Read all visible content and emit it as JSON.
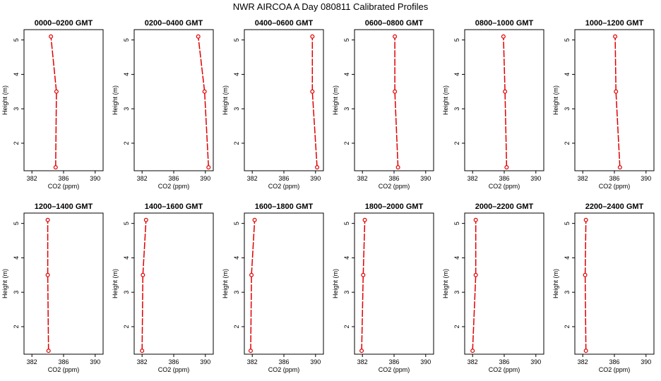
{
  "page_title": "NWR AIRCOA A  Day 080811  Calibrated Profiles",
  "colors": {
    "series": "#dd0000",
    "axes": "#000000",
    "background": "#ffffff"
  },
  "chart_data": [
    {
      "type": "line",
      "title": "0000–0200 GMT",
      "xlabel": "CO2 (ppm)",
      "ylabel": "Height (m)",
      "xlim": [
        381,
        391
      ],
      "ylim": [
        1.2,
        5.3
      ],
      "xticks": [
        "382",
        "386",
        "390"
      ],
      "yticks": [
        "2",
        "3",
        "4",
        "5"
      ],
      "points": [
        {
          "co2": 385.0,
          "height": 1.3
        },
        {
          "co2": 385.1,
          "height": 3.5
        },
        {
          "co2": 384.4,
          "height": 5.1
        }
      ]
    },
    {
      "type": "line",
      "title": "0200–0400 GMT",
      "xlabel": "CO2 (ppm)",
      "ylabel": "Height (m)",
      "xlim": [
        381,
        391
      ],
      "ylim": [
        1.2,
        5.3
      ],
      "xticks": [
        "382",
        "386",
        "390"
      ],
      "yticks": [
        "2",
        "3",
        "4",
        "5"
      ],
      "points": [
        {
          "co2": 390.4,
          "height": 1.3
        },
        {
          "co2": 389.9,
          "height": 3.5
        },
        {
          "co2": 389.1,
          "height": 5.1
        }
      ]
    },
    {
      "type": "line",
      "title": "0400–0600 GMT",
      "xlabel": "CO2 (ppm)",
      "ylabel": "Height (m)",
      "xlim": [
        381,
        391
      ],
      "ylim": [
        1.2,
        5.3
      ],
      "xticks": [
        "382",
        "386",
        "390"
      ],
      "yticks": [
        "2",
        "3",
        "4",
        "5"
      ],
      "points": [
        {
          "co2": 390.2,
          "height": 1.3
        },
        {
          "co2": 389.6,
          "height": 3.5
        },
        {
          "co2": 389.6,
          "height": 5.1
        }
      ]
    },
    {
      "type": "line",
      "title": "0600–0800 GMT",
      "xlabel": "CO2 (ppm)",
      "ylabel": "Height (m)",
      "xlim": [
        381,
        391
      ],
      "ylim": [
        1.2,
        5.3
      ],
      "xticks": [
        "382",
        "386",
        "390"
      ],
      "yticks": [
        "2",
        "3",
        "4",
        "5"
      ],
      "points": [
        {
          "co2": 386.5,
          "height": 1.3
        },
        {
          "co2": 386.1,
          "height": 3.5
        },
        {
          "co2": 386.1,
          "height": 5.1
        }
      ]
    },
    {
      "type": "line",
      "title": "0800–1000 GMT",
      "xlabel": "CO2 (ppm)",
      "ylabel": "Height (m)",
      "xlim": [
        381,
        391
      ],
      "ylim": [
        1.2,
        5.3
      ],
      "xticks": [
        "382",
        "386",
        "390"
      ],
      "yticks": [
        "2",
        "3",
        "4",
        "5"
      ],
      "points": [
        {
          "co2": 386.3,
          "height": 1.3
        },
        {
          "co2": 386.1,
          "height": 3.5
        },
        {
          "co2": 385.9,
          "height": 5.1
        }
      ]
    },
    {
      "type": "line",
      "title": "1000–1200 GMT",
      "xlabel": "CO2 (ppm)",
      "ylabel": "Height (m)",
      "xlim": [
        381,
        391
      ],
      "ylim": [
        1.2,
        5.3
      ],
      "xticks": [
        "382",
        "386",
        "390"
      ],
      "yticks": [
        "2",
        "3",
        "4",
        "5"
      ],
      "points": [
        {
          "co2": 386.7,
          "height": 1.3
        },
        {
          "co2": 386.2,
          "height": 3.5
        },
        {
          "co2": 386.1,
          "height": 5.1
        }
      ]
    },
    {
      "type": "line",
      "title": "1200–1400 GMT",
      "xlabel": "CO2 (ppm)",
      "ylabel": "Height (m)",
      "xlim": [
        381,
        391
      ],
      "ylim": [
        1.2,
        5.3
      ],
      "xticks": [
        "382",
        "386",
        "390"
      ],
      "yticks": [
        "2",
        "3",
        "4",
        "5"
      ],
      "points": [
        {
          "co2": 384.1,
          "height": 1.3
        },
        {
          "co2": 384.0,
          "height": 3.5
        },
        {
          "co2": 384.0,
          "height": 5.1
        }
      ]
    },
    {
      "type": "line",
      "title": "1400–1600 GMT",
      "xlabel": "CO2 (ppm)",
      "ylabel": "Height (m)",
      "xlim": [
        381,
        391
      ],
      "ylim": [
        1.2,
        5.3
      ],
      "xticks": [
        "382",
        "386",
        "390"
      ],
      "yticks": [
        "2",
        "3",
        "4",
        "5"
      ],
      "points": [
        {
          "co2": 382.0,
          "height": 1.3
        },
        {
          "co2": 382.1,
          "height": 3.5
        },
        {
          "co2": 382.5,
          "height": 5.1
        }
      ]
    },
    {
      "type": "line",
      "title": "1600–1800 GMT",
      "xlabel": "CO2 (ppm)",
      "ylabel": "Height (m)",
      "xlim": [
        381,
        391
      ],
      "ylim": [
        1.2,
        5.3
      ],
      "xticks": [
        "382",
        "386",
        "390"
      ],
      "yticks": [
        "2",
        "3",
        "4",
        "5"
      ],
      "points": [
        {
          "co2": 381.8,
          "height": 1.3
        },
        {
          "co2": 381.9,
          "height": 3.5
        },
        {
          "co2": 382.3,
          "height": 5.1
        }
      ]
    },
    {
      "type": "line",
      "title": "1800–2000 GMT",
      "xlabel": "CO2 (ppm)",
      "ylabel": "Height (m)",
      "xlim": [
        381,
        391
      ],
      "ylim": [
        1.2,
        5.3
      ],
      "xticks": [
        "382",
        "386",
        "390"
      ],
      "yticks": [
        "2",
        "3",
        "4",
        "5"
      ],
      "points": [
        {
          "co2": 381.9,
          "height": 1.3
        },
        {
          "co2": 382.1,
          "height": 3.5
        },
        {
          "co2": 382.3,
          "height": 5.1
        }
      ]
    },
    {
      "type": "line",
      "title": "2000–2200 GMT",
      "xlabel": "CO2 (ppm)",
      "ylabel": "Height (m)",
      "xlim": [
        381,
        391
      ],
      "ylim": [
        1.2,
        5.3
      ],
      "xticks": [
        "382",
        "386",
        "390"
      ],
      "yticks": [
        "2",
        "3",
        "4",
        "5"
      ],
      "points": [
        {
          "co2": 382.0,
          "height": 1.3
        },
        {
          "co2": 382.4,
          "height": 3.5
        },
        {
          "co2": 382.4,
          "height": 5.1
        }
      ]
    },
    {
      "type": "line",
      "title": "2200–2400 GMT",
      "xlabel": "CO2 (ppm)",
      "ylabel": "Height (m)",
      "xlim": [
        381,
        391
      ],
      "ylim": [
        1.2,
        5.3
      ],
      "xticks": [
        "382",
        "386",
        "390"
      ],
      "yticks": [
        "2",
        "3",
        "4",
        "5"
      ],
      "points": [
        {
          "co2": 382.4,
          "height": 1.3
        },
        {
          "co2": 382.3,
          "height": 3.5
        },
        {
          "co2": 382.4,
          "height": 5.1
        }
      ]
    }
  ]
}
